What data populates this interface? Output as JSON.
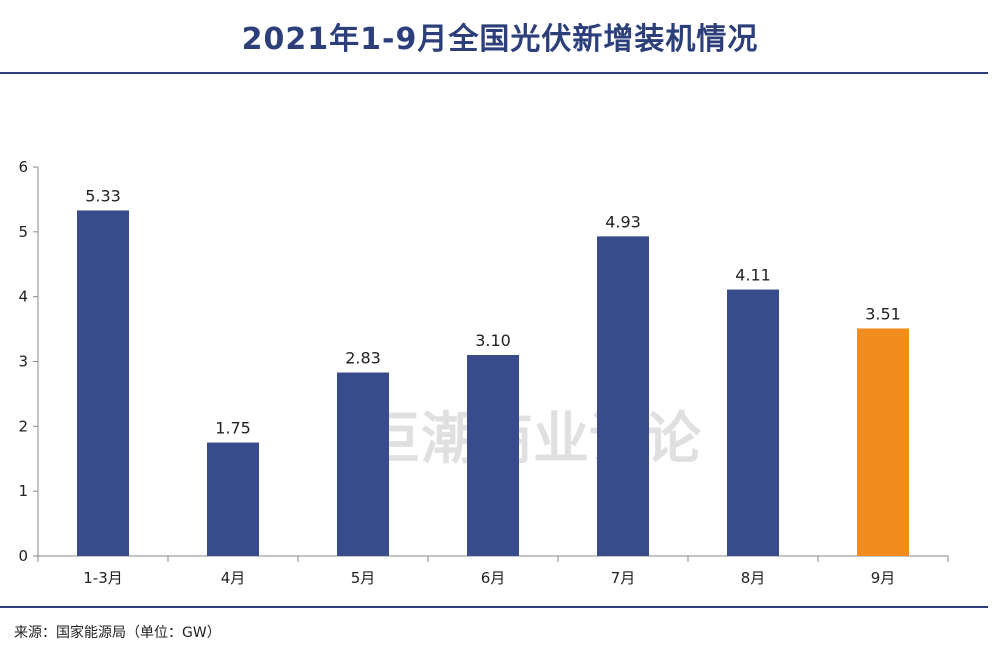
{
  "header": {
    "title": "2021年1-9月全国光伏新增装机情况"
  },
  "watermark": "巨潮商业评论",
  "footer": {
    "source": "来源：国家能源局（单位：GW）"
  },
  "colors": {
    "title": "#2d3f7b",
    "bar_default": "#384b8b",
    "bar_highlight": "#f28c1e",
    "axis": "#888888"
  },
  "chart_data": {
    "type": "bar",
    "categories": [
      "1-3月",
      "4月",
      "5月",
      "6月",
      "7月",
      "8月",
      "9月"
    ],
    "values": [
      5.33,
      1.75,
      2.83,
      3.1,
      4.93,
      4.11,
      3.51
    ],
    "data_labels": [
      "5.33",
      "1.75",
      "2.83",
      "3.10",
      "4.93",
      "4.11",
      "3.51"
    ],
    "highlight_index": 6,
    "ylim": [
      0,
      6
    ],
    "yticks": [
      0,
      1,
      2,
      3,
      4,
      5,
      6
    ],
    "title": "2021年1-9月全国光伏新增装机情况",
    "xlabel": "",
    "ylabel": "",
    "grid": false,
    "legend": "none"
  }
}
